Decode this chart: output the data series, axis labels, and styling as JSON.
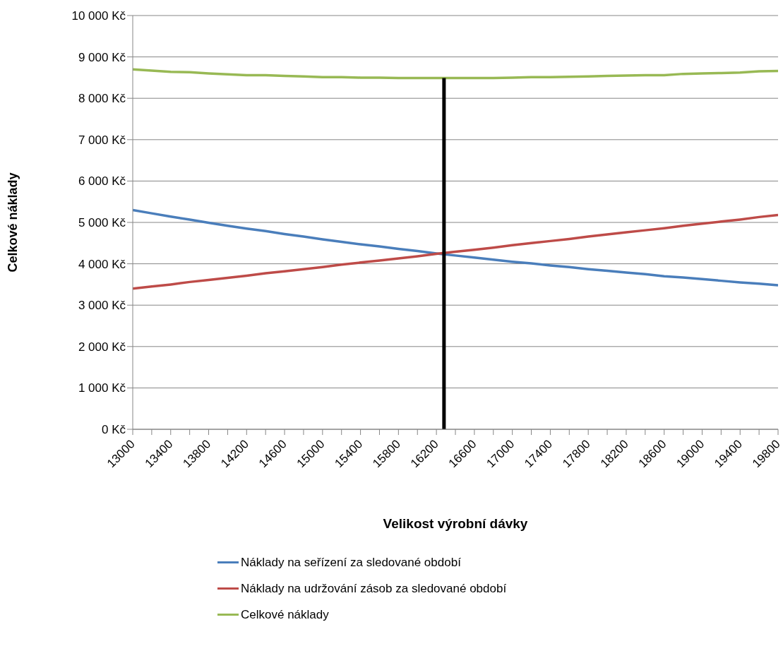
{
  "chart_data": {
    "type": "line",
    "xlabel": "Velikost výrobní dávky",
    "ylabel": "Celkové náklady",
    "xlim": [
      13000,
      19800
    ],
    "xticks": [
      13000,
      {
        "value": 13200,
        "label": null
      },
      13400,
      {
        "value": 13600,
        "label": null
      },
      13800,
      {
        "value": 14000,
        "label": null
      },
      14200,
      {
        "value": 14400,
        "label": null
      },
      14600,
      {
        "value": 14800,
        "label": null
      },
      15000,
      {
        "value": 15200,
        "label": null
      },
      15400,
      {
        "value": 15600,
        "label": null
      },
      15800,
      {
        "value": 16000,
        "label": null
      },
      16200,
      {
        "value": 16400,
        "label": null
      },
      16600,
      {
        "value": 16800,
        "label": null
      },
      17000,
      {
        "value": 17200,
        "label": null
      },
      17400,
      {
        "value": 17600,
        "label": null
      },
      17800,
      {
        "value": 18000,
        "label": null
      },
      18200,
      {
        "value": 18400,
        "label": null
      },
      18600,
      {
        "value": 18800,
        "label": null
      },
      19000,
      {
        "value": 19200,
        "label": null
      },
      19400,
      {
        "value": 19600,
        "label": null
      },
      19800
    ],
    "ylim": [
      0,
      10000
    ],
    "yticks": [
      {
        "value": 0,
        "label": "0 Kč"
      },
      {
        "value": 1000,
        "label": "1 000 Kč"
      },
      {
        "value": 2000,
        "label": "2 000 Kč"
      },
      {
        "value": 3000,
        "label": "3 000 Kč"
      },
      {
        "value": 4000,
        "label": "4 000 Kč"
      },
      {
        "value": 5000,
        "label": "5 000 Kč"
      },
      {
        "value": 6000,
        "label": "6 000 Kč"
      },
      {
        "value": 7000,
        "label": "7 000 Kč"
      },
      {
        "value": 8000,
        "label": "8 000 Kč"
      },
      {
        "value": 9000,
        "label": "9 000 Kč"
      },
      {
        "value": 10000,
        "label": "10 000 Kč"
      }
    ],
    "grid": "y",
    "legend": "bottom",
    "marker": "none",
    "x": [
      13000,
      13200,
      13400,
      13600,
      13800,
      14000,
      14200,
      14400,
      14600,
      14800,
      15000,
      15200,
      15400,
      15600,
      15800,
      16000,
      16200,
      16400,
      16600,
      16800,
      17000,
      17200,
      17400,
      17600,
      17800,
      18000,
      18200,
      18400,
      18600,
      18800,
      19000,
      19200,
      19400,
      19600,
      19800
    ],
    "series": [
      {
        "name": "Náklady na seřízení za sledované období",
        "color": "#4a7ebb",
        "values": [
          5300,
          5220,
          5140,
          5070,
          4990,
          4920,
          4850,
          4790,
          4720,
          4660,
          4590,
          4530,
          4470,
          4420,
          4360,
          4310,
          4250,
          4200,
          4150,
          4100,
          4050,
          4010,
          3960,
          3920,
          3870,
          3830,
          3790,
          3750,
          3700,
          3670,
          3630,
          3590,
          3550,
          3520,
          3480
        ]
      },
      {
        "name": "Náklady na udržování zásob za sledované období",
        "color": "#be4b48",
        "values": [
          3400,
          3450,
          3500,
          3560,
          3610,
          3660,
          3710,
          3770,
          3820,
          3870,
          3920,
          3980,
          4030,
          4080,
          4130,
          4180,
          4240,
          4290,
          4340,
          4390,
          4450,
          4500,
          4550,
          4600,
          4660,
          4710,
          4760,
          4810,
          4860,
          4920,
          4970,
          5020,
          5070,
          5130,
          5180
        ]
      },
      {
        "name": "Celkové náklady",
        "color": "#98b954",
        "values": [
          8700,
          8670,
          8640,
          8630,
          8600,
          8580,
          8560,
          8560,
          8540,
          8530,
          8510,
          8510,
          8500,
          8500,
          8490,
          8490,
          8490,
          8490,
          8490,
          8490,
          8500,
          8510,
          8510,
          8520,
          8530,
          8540,
          8550,
          8560,
          8560,
          8590,
          8600,
          8610,
          8620,
          8650,
          8660
        ]
      },
      {
        "color": "#000000",
        "x": [
          16280,
          16280
        ],
        "values": [
          0,
          8490
        ]
      }
    ]
  }
}
